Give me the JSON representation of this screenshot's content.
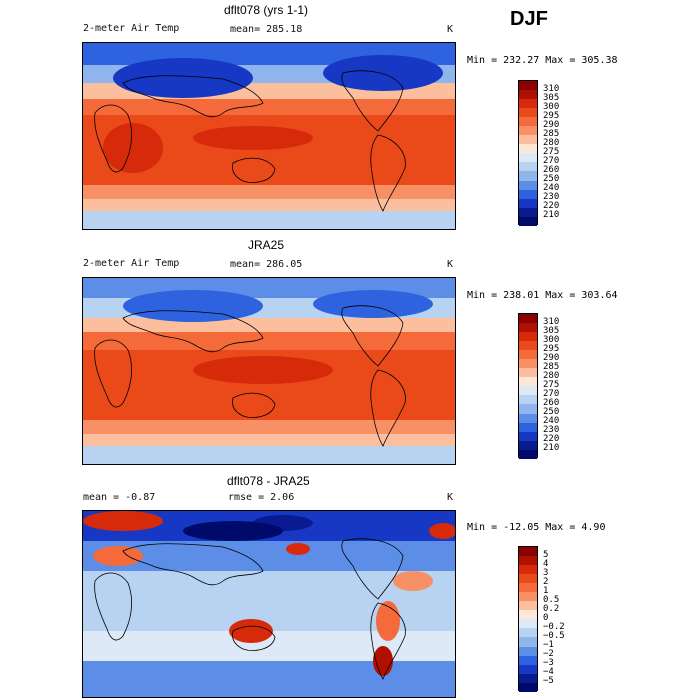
{
  "season": "DJF",
  "panels": [
    {
      "title": "dflt078 (yrs 1-1)",
      "left_label": "2-meter Air Temp",
      "center_label": "mean= 285.18",
      "units": "K",
      "minmax": "Min = 232.27 Max = 305.38",
      "colorbar": {
        "labels": [
          "310",
          "305",
          "300",
          "295",
          "290",
          "285",
          "280",
          "275",
          "270",
          "260",
          "250",
          "240",
          "230",
          "220",
          "210"
        ],
        "colors": [
          "#8b0000",
          "#b01000",
          "#d62a0a",
          "#ea4a1a",
          "#f46a3a",
          "#f89066",
          "#fcbf9e",
          "#fde7d8",
          "#dde9f7",
          "#b8d3f2",
          "#8fb5ec",
          "#5c8ee8",
          "#2f62de",
          "#1638c4",
          "#0a1a90",
          "#000a6a"
        ]
      }
    },
    {
      "title": "JRA25",
      "left_label": "2-meter Air Temp",
      "center_label": "mean= 286.05",
      "units": "K",
      "minmax": "Min = 238.01 Max = 303.64",
      "colorbar": {
        "labels": [
          "310",
          "305",
          "300",
          "295",
          "290",
          "285",
          "280",
          "275",
          "270",
          "260",
          "250",
          "240",
          "230",
          "220",
          "210"
        ],
        "colors": [
          "#8b0000",
          "#b01000",
          "#d62a0a",
          "#ea4a1a",
          "#f46a3a",
          "#f89066",
          "#fcbf9e",
          "#fde7d8",
          "#dde9f7",
          "#b8d3f2",
          "#8fb5ec",
          "#5c8ee8",
          "#2f62de",
          "#1638c4",
          "#0a1a90",
          "#000a6a"
        ]
      }
    },
    {
      "title": "dflt078 - JRA25",
      "left_label": "mean =  -0.87",
      "center_label": "rmse =   2.06",
      "units": "K",
      "minmax": "Min = -12.05 Max =   4.90",
      "colorbar": {
        "labels": [
          "5",
          "4",
          "3",
          "2",
          "1",
          "0.5",
          "0.2",
          "0",
          "−0.2",
          "−0.5",
          "−1",
          "−2",
          "−3",
          "−4",
          "−5"
        ],
        "colors": [
          "#8b0000",
          "#b01000",
          "#d62a0a",
          "#ea4a1a",
          "#f46a3a",
          "#f89066",
          "#fcbf9e",
          "#fde7d8",
          "#dde9f7",
          "#b8d3f2",
          "#8fb5ec",
          "#5c8ee8",
          "#2f62de",
          "#1638c4",
          "#0a1a90",
          "#000a6a"
        ]
      }
    }
  ]
}
